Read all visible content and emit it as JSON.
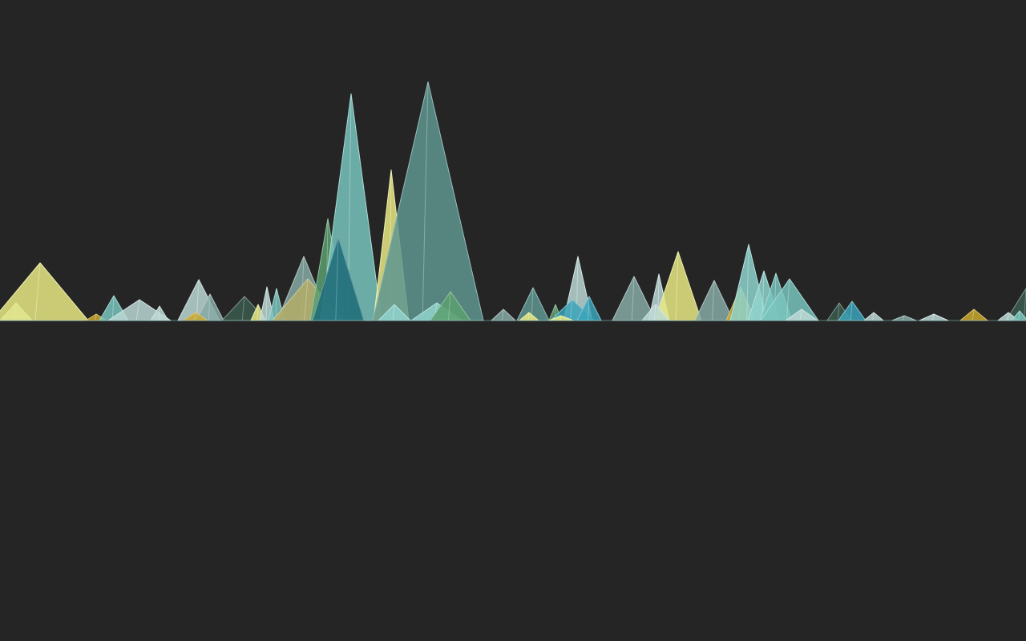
{
  "canvas": {
    "background": "#252525"
  },
  "palette": {
    "teal_light": "#79c4bd",
    "teal_mid": "#5f9691",
    "teal_dark": "#1c6a78",
    "yellow": "#e7e983",
    "olive": "#b3ad67",
    "gold": "#c9a72a",
    "green": "#5b9f6f",
    "pale": "#bcd8d5",
    "gray_teal": "#86a9a5",
    "deep_green": "#3b5c4f",
    "aqua": "#8fd3cc",
    "blue_teal": "#3aa3b8"
  },
  "peaks": [
    {
      "c": 1280,
      "w": 50,
      "h": 40,
      "color": "deep_green"
    },
    {
      "c": 20,
      "w": 40,
      "h": 22,
      "color": "pale"
    },
    {
      "c": 50,
      "w": 120,
      "h": 72,
      "color": "yellow"
    },
    {
      "c": 120,
      "w": 26,
      "h": 8,
      "color": "gold"
    },
    {
      "c": 142,
      "w": 36,
      "h": 31,
      "color": "teal_light"
    },
    {
      "c": 174,
      "w": 78,
      "h": 26,
      "color": "pale"
    },
    {
      "c": 199,
      "w": 22,
      "h": 18,
      "color": "pale"
    },
    {
      "c": 248,
      "w": 52,
      "h": 51,
      "color": "pale"
    },
    {
      "c": 262,
      "w": 34,
      "h": 33,
      "color": "gray_teal"
    },
    {
      "c": 244,
      "w": 30,
      "h": 10,
      "color": "gold"
    },
    {
      "c": 305,
      "w": 56,
      "h": 30,
      "color": "deep_green"
    },
    {
      "c": 322,
      "w": 18,
      "h": 20,
      "color": "yellow"
    },
    {
      "c": 333,
      "w": 18,
      "h": 42,
      "color": "pale"
    },
    {
      "c": 345,
      "w": 20,
      "h": 40,
      "color": "teal_light"
    },
    {
      "c": 379,
      "w": 66,
      "h": 80,
      "color": "gray_teal"
    },
    {
      "c": 384,
      "w": 88,
      "h": 52,
      "color": "olive"
    },
    {
      "c": 409,
      "w": 44,
      "h": 127,
      "color": "green"
    },
    {
      "c": 438,
      "w": 76,
      "h": 283,
      "color": "teal_light"
    },
    {
      "c": 422,
      "w": 64,
      "h": 104,
      "color": "teal_dark"
    },
    {
      "c": 488,
      "w": 44,
      "h": 188,
      "color": "yellow"
    },
    {
      "c": 534,
      "w": 138,
      "h": 298,
      "color": "teal_mid"
    },
    {
      "c": 492,
      "w": 40,
      "h": 20,
      "color": "aqua"
    },
    {
      "c": 545,
      "w": 64,
      "h": 22,
      "color": "aqua"
    },
    {
      "c": 562,
      "w": 50,
      "h": 36,
      "color": "green"
    },
    {
      "c": 628,
      "w": 30,
      "h": 14,
      "color": "gray_teal"
    },
    {
      "c": 665,
      "w": 40,
      "h": 41,
      "color": "teal_mid"
    },
    {
      "c": 660,
      "w": 24,
      "h": 10,
      "color": "yellow"
    },
    {
      "c": 693,
      "w": 16,
      "h": 20,
      "color": "green"
    },
    {
      "c": 721,
      "w": 36,
      "h": 80,
      "color": "pale"
    },
    {
      "c": 714,
      "w": 54,
      "h": 26,
      "color": "blue_teal"
    },
    {
      "c": 735,
      "w": 30,
      "h": 30,
      "color": "blue_teal"
    },
    {
      "c": 700,
      "w": 30,
      "h": 6,
      "color": "yellow"
    },
    {
      "c": 791,
      "w": 54,
      "h": 55,
      "color": "gray_teal"
    },
    {
      "c": 822,
      "w": 26,
      "h": 58,
      "color": "pale"
    },
    {
      "c": 846,
      "w": 58,
      "h": 86,
      "color": "yellow"
    },
    {
      "c": 818,
      "w": 34,
      "h": 20,
      "color": "pale"
    },
    {
      "c": 891,
      "w": 48,
      "h": 50,
      "color": "gray_teal"
    },
    {
      "c": 924,
      "w": 36,
      "h": 42,
      "color": "gold"
    },
    {
      "c": 934,
      "w": 46,
      "h": 95,
      "color": "aqua"
    },
    {
      "c": 953,
      "w": 40,
      "h": 62,
      "color": "aqua"
    },
    {
      "c": 968,
      "w": 40,
      "h": 59,
      "color": "teal_light"
    },
    {
      "c": 985,
      "w": 72,
      "h": 52,
      "color": "teal_light"
    },
    {
      "c": 1000,
      "w": 40,
      "h": 14,
      "color": "pale"
    },
    {
      "c": 1047,
      "w": 30,
      "h": 22,
      "color": "deep_green"
    },
    {
      "c": 1063,
      "w": 34,
      "h": 24,
      "color": "blue_teal"
    },
    {
      "c": 1090,
      "w": 24,
      "h": 10,
      "color": "pale"
    },
    {
      "c": 1128,
      "w": 30,
      "h": 6,
      "color": "gray_teal"
    },
    {
      "c": 1165,
      "w": 36,
      "h": 8,
      "color": "pale"
    },
    {
      "c": 1215,
      "w": 34,
      "h": 14,
      "color": "gold"
    },
    {
      "c": 1258,
      "w": 26,
      "h": 10,
      "color": "pale"
    },
    {
      "c": 1272,
      "w": 20,
      "h": 12,
      "color": "teal_light"
    }
  ]
}
